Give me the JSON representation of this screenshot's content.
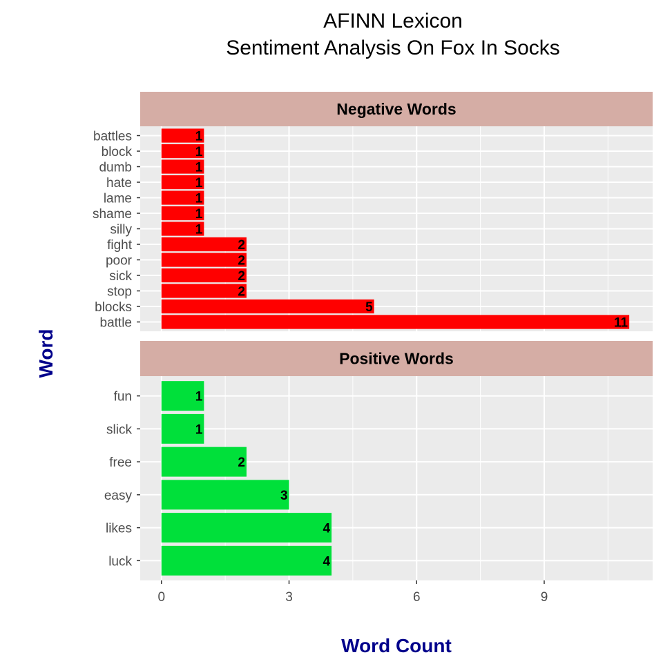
{
  "chart_data": {
    "type": "bar",
    "orientation": "horizontal",
    "title_lines": [
      "AFINN Lexicon",
      "Sentiment Analysis On Fox In Socks"
    ],
    "xlabel": "Word Count",
    "ylabel": "Word",
    "xlim": [
      -0.5,
      11.55
    ],
    "x_ticks": [
      0,
      3,
      6,
      9
    ],
    "grid": true,
    "facets": [
      {
        "name": "Negative Words",
        "color": "#FF0000",
        "categories": [
          "battle",
          "blocks",
          "stop",
          "sick",
          "poor",
          "fight",
          "silly",
          "shame",
          "lame",
          "hate",
          "dumb",
          "block",
          "battles"
        ],
        "values": [
          11,
          5,
          2,
          2,
          2,
          2,
          1,
          1,
          1,
          1,
          1,
          1,
          1
        ]
      },
      {
        "name": "Positive Words",
        "color": "#00E03A",
        "categories": [
          "luck",
          "likes",
          "easy",
          "free",
          "slick",
          "fun"
        ],
        "values": [
          4,
          4,
          3,
          2,
          1,
          1
        ]
      }
    ]
  }
}
